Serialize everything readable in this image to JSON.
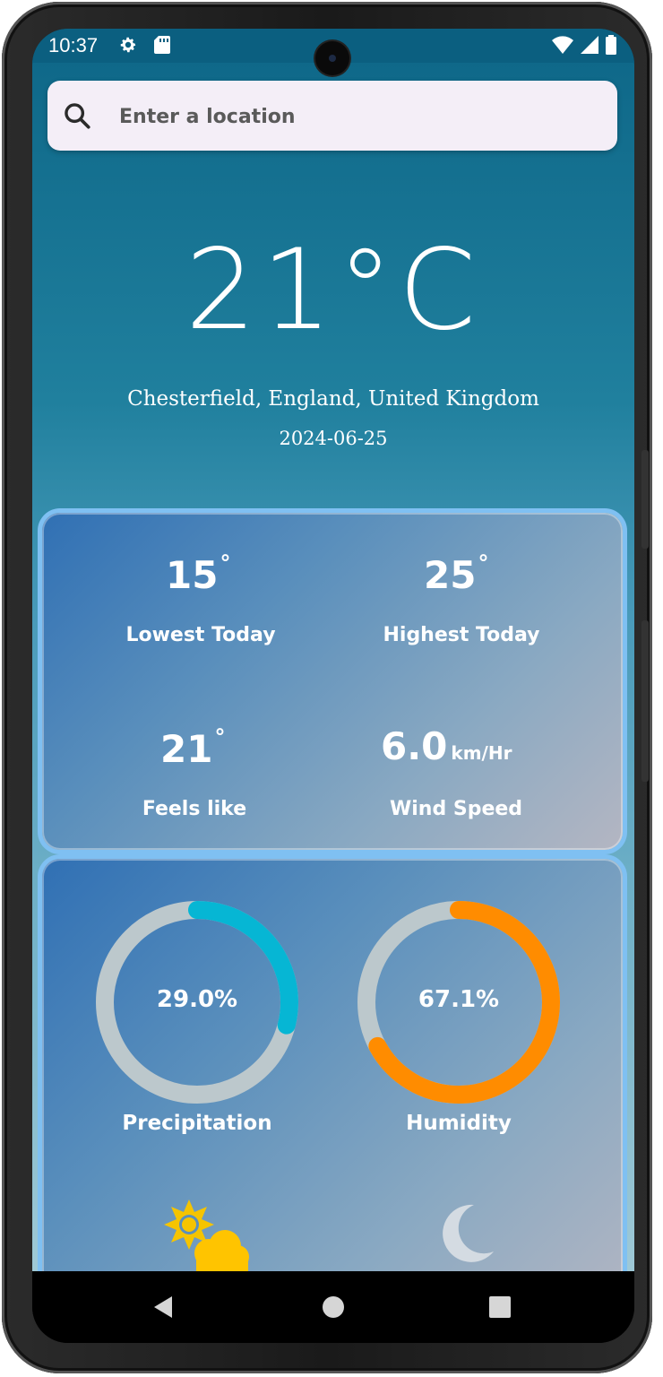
{
  "status_bar": {
    "time": "10:37",
    "icons": [
      "gear-icon",
      "sd-card-icon",
      "wifi-icon",
      "signal-icon",
      "battery-icon"
    ]
  },
  "search": {
    "placeholder": "Enter a location",
    "icon": "search-icon"
  },
  "current": {
    "temperature": "21°C",
    "location": "Chesterfield, England, United Kingdom",
    "date": "2024-06-25"
  },
  "stats": {
    "lowest": {
      "value": "15",
      "degree": "°",
      "label": "Lowest Today"
    },
    "highest": {
      "value": "25",
      "degree": "°",
      "label": "Highest Today"
    },
    "feels_like": {
      "value": "21",
      "degree": "°",
      "label": "Feels like"
    },
    "wind": {
      "value": "6.0",
      "unit": "km/Hr",
      "label": "Wind Speed"
    }
  },
  "gauges": {
    "precipitation": {
      "text": "29.0%",
      "fraction": 0.29,
      "label": "Precipitation",
      "color": "#06b6d4"
    },
    "humidity": {
      "text": "67.1%",
      "fraction": 0.671,
      "label": "Humidity",
      "color": "#ff8c00"
    },
    "track_color": "#bcc8cc"
  },
  "bottom_icons": [
    "sun-cloud-icon",
    "moon-icon"
  ],
  "colors": {
    "statusbar": "#0b5f80",
    "card_border": "#7fc0f2",
    "search_bg": "#f4eef7"
  },
  "nav": [
    "back-icon",
    "home-icon",
    "recents-icon"
  ]
}
